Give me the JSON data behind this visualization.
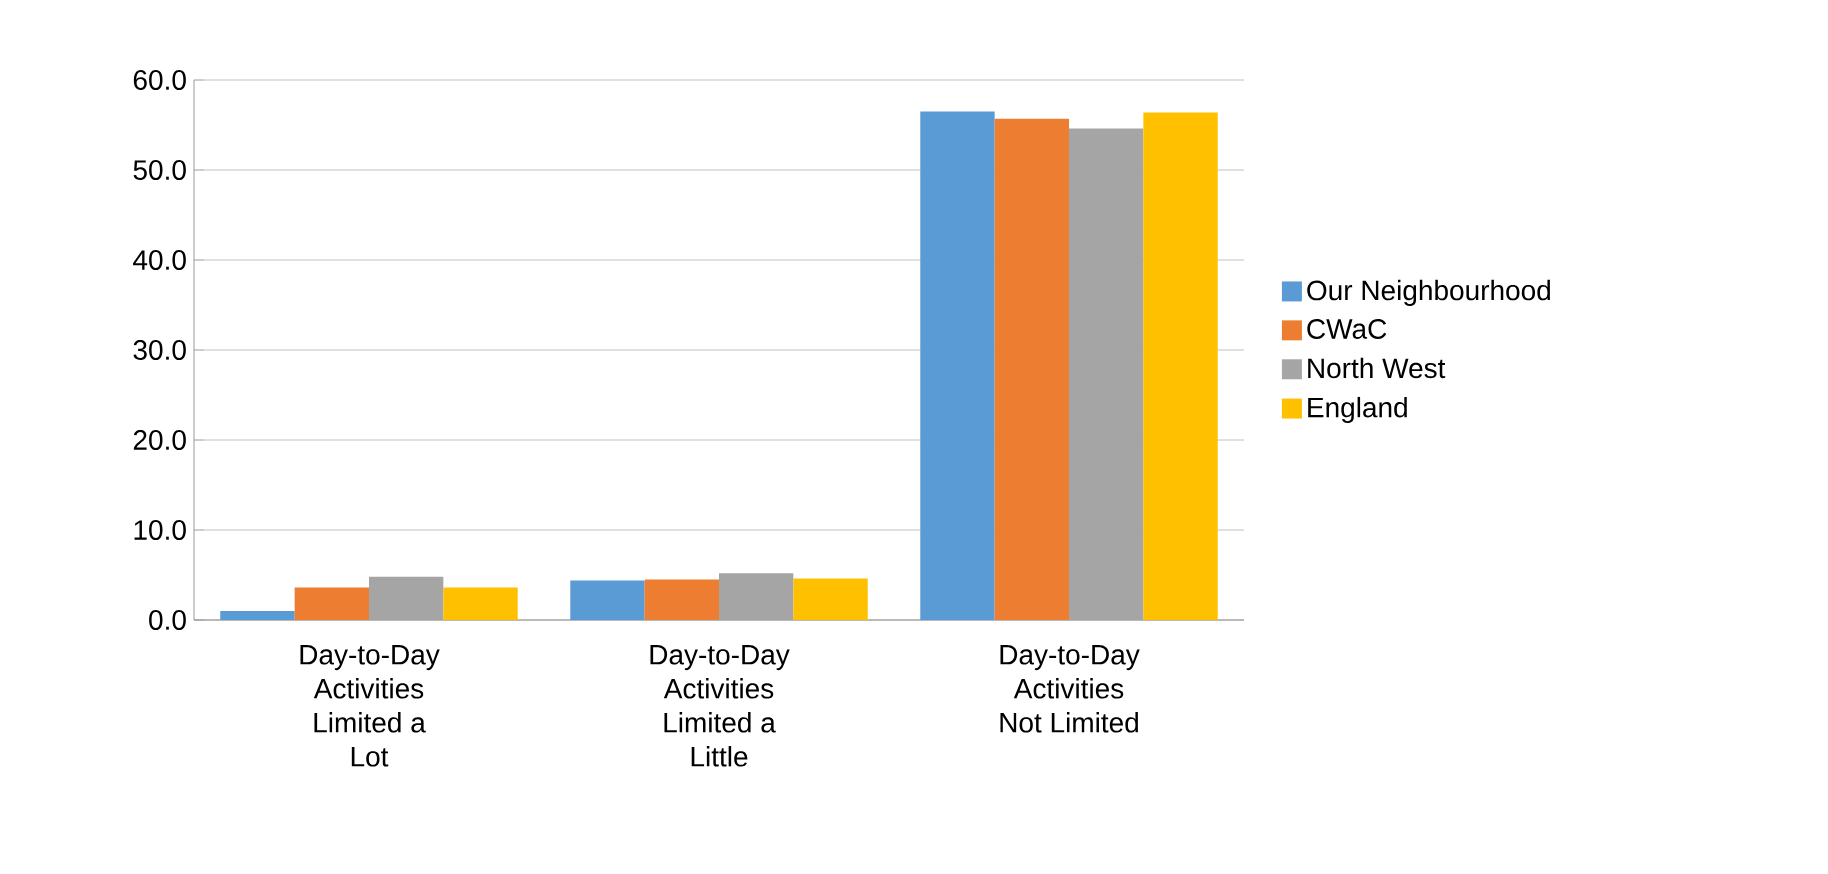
{
  "chart_data": {
    "type": "bar",
    "categories": [
      "Day-to-Day Activities Limited a Lot",
      "Day-to-Day Activities Limited a Little",
      "Day-to-Day Activities Not Limited"
    ],
    "series": [
      {
        "name": "Our Neighbourhood",
        "color": "#5b9bd5",
        "values": [
          1.0,
          4.4,
          56.5
        ]
      },
      {
        "name": "CWaC",
        "color": "#ed7d31",
        "values": [
          3.6,
          4.5,
          55.7
        ]
      },
      {
        "name": "North West",
        "color": "#a5a5a5",
        "values": [
          4.8,
          5.2,
          54.6
        ]
      },
      {
        "name": "England",
        "color": "#ffc000",
        "values": [
          3.6,
          4.6,
          56.4
        ]
      }
    ],
    "ylim": [
      0,
      60
    ],
    "yticks": [
      {
        "value": 0,
        "label": "0.0"
      },
      {
        "value": 10,
        "label": "10.0"
      },
      {
        "value": 20,
        "label": "20.0"
      },
      {
        "value": 30,
        "label": "30.0"
      },
      {
        "value": 40,
        "label": "40.0"
      },
      {
        "value": 50,
        "label": "50.0"
      },
      {
        "value": 60,
        "label": "60.0"
      }
    ],
    "grid": "y",
    "legend": "right"
  }
}
